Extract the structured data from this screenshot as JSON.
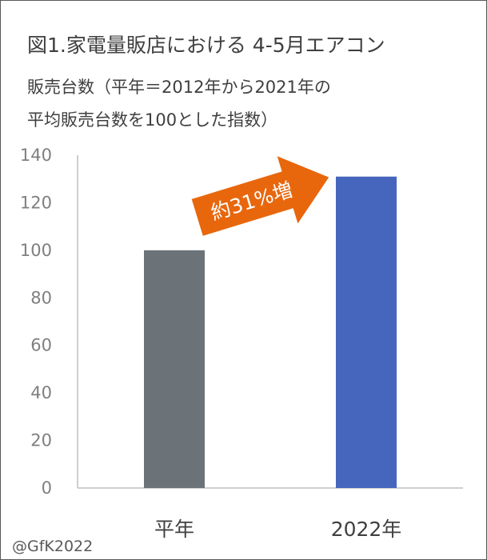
{
  "header": {
    "title_line1": "図1.家電量販店における 4-5月エアコン",
    "title_line2": "販売台数（平年＝2012年から2021年の",
    "title_line3": "平均販売台数を100とした指数）"
  },
  "chart_data": {
    "type": "bar",
    "categories": [
      "平年",
      "2022年"
    ],
    "values": [
      100,
      131
    ],
    "ylim": [
      0,
      140
    ],
    "yticks": [
      0,
      20,
      40,
      60,
      80,
      100,
      120,
      140
    ],
    "bar_colors": [
      "#6b7378",
      "#4666be"
    ],
    "grid": false,
    "annotation": {
      "text": "約31%増",
      "color": "#e8670d",
      "text_color": "#ffffff"
    }
  },
  "colors": {
    "axis": "#bfbfbf",
    "tick_label": "#7f7f7f",
    "category_label": "#404040",
    "border": "#595959"
  },
  "footer": {
    "credit": "@GfK2022"
  }
}
